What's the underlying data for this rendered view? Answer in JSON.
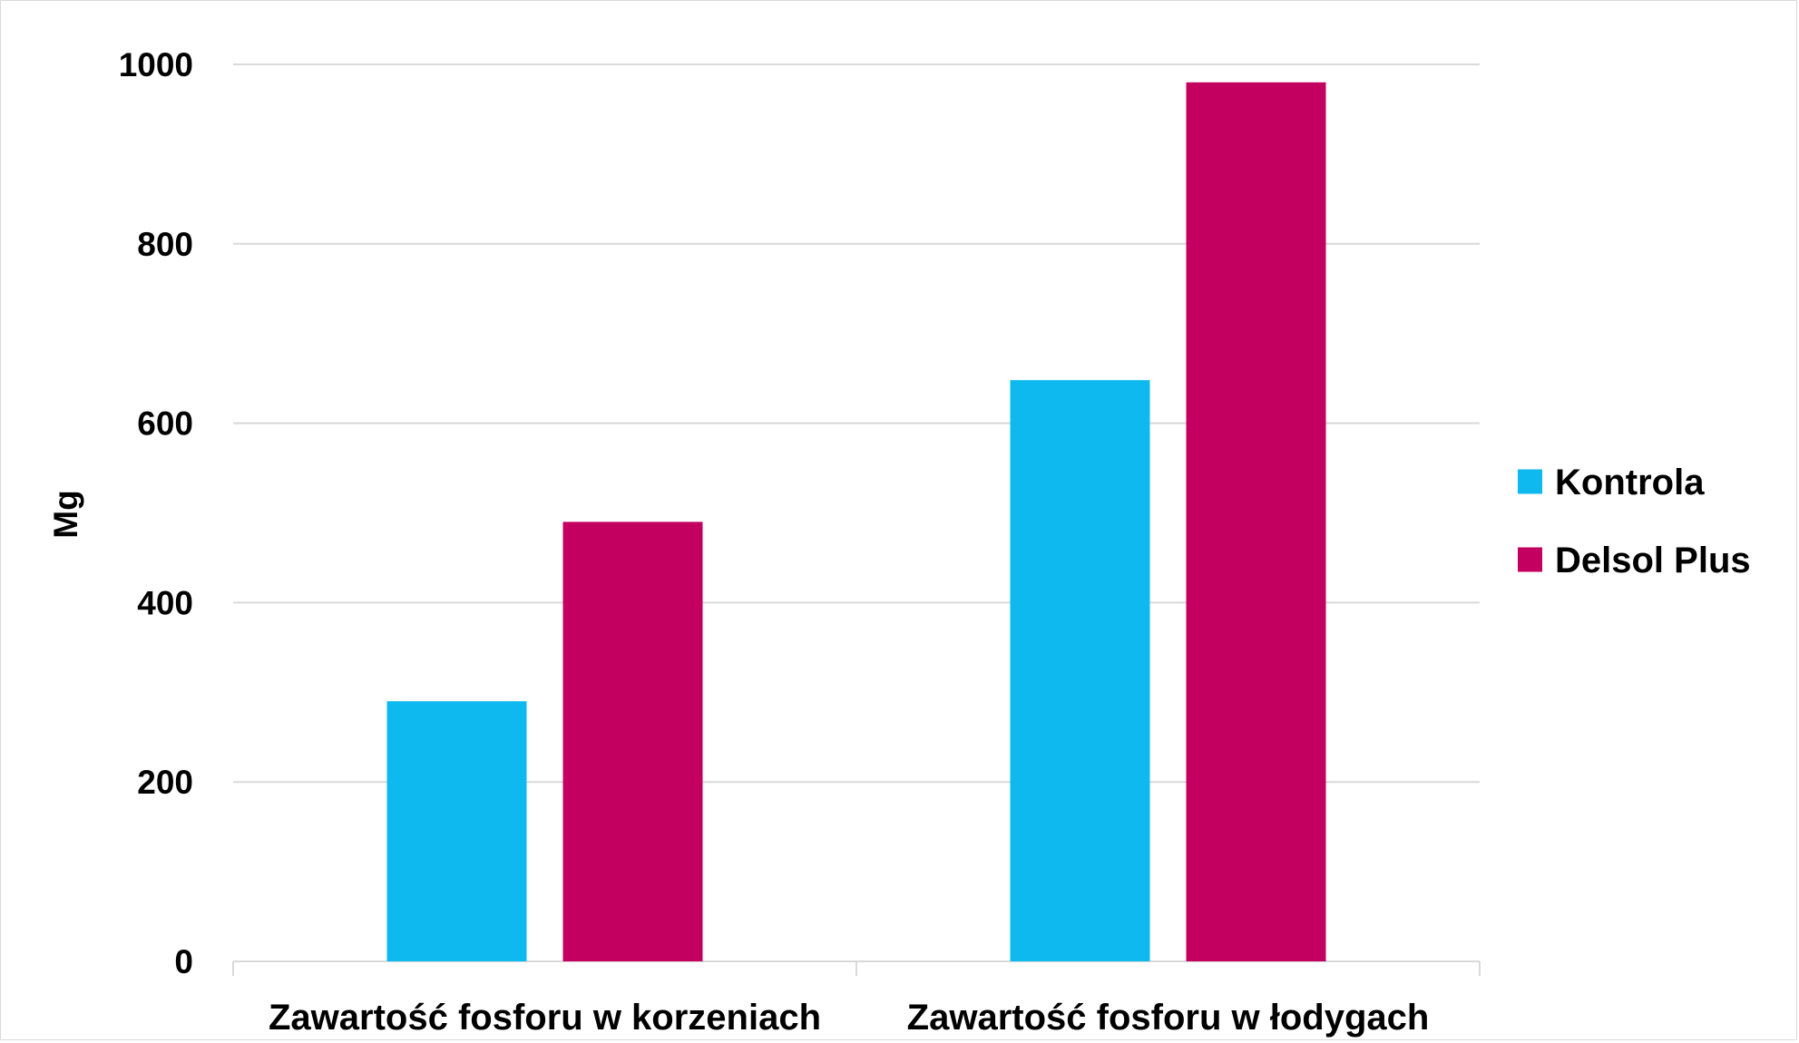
{
  "chart_data": {
    "type": "bar",
    "title": "",
    "xlabel": "",
    "ylabel": "Mg",
    "categories": [
      "Zawartość fosforu w korzeniach",
      "Zawartość fosforu w łodygach"
    ],
    "series": [
      {
        "name": "Kontrola",
        "values": [
          290,
          648
        ],
        "color": "#0DB9EF"
      },
      {
        "name": "Delsol Plus",
        "values": [
          490,
          980
        ],
        "color": "#C3005F"
      }
    ],
    "yticks": [
      0,
      200,
      400,
      600,
      800,
      1000
    ],
    "ylim": [
      0,
      1000
    ],
    "grid": true,
    "legend_position": "right"
  }
}
